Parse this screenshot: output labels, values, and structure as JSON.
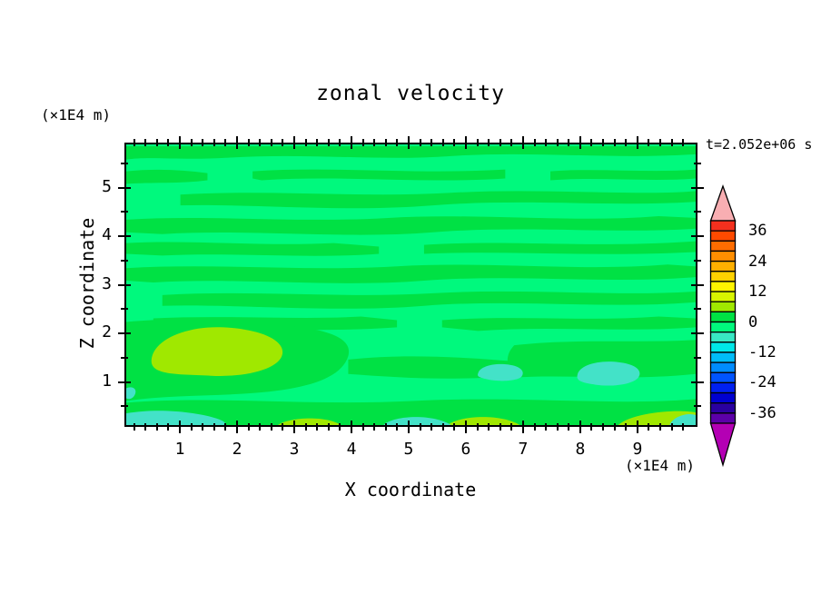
{
  "title": "zonal velocity",
  "time_label": "t=2.052e+06 s",
  "axes": {
    "x": {
      "label": "X coordinate",
      "unit_label": "(×1E4 m)",
      "major_ticks": [
        1,
        2,
        3,
        4,
        5,
        6,
        7,
        8,
        9
      ],
      "minor_step": 0.2,
      "range": [
        0.03,
        10.05
      ]
    },
    "z": {
      "label": "Z coordinate",
      "unit_label": "(×1E4 m)",
      "major_ticks": [
        1,
        2,
        3,
        4,
        5
      ],
      "minor_step": 0.5,
      "range": [
        0.075,
        5.93
      ]
    }
  },
  "colorbar": {
    "labels": [
      36,
      24,
      12,
      0,
      -12,
      -24,
      -36
    ],
    "level_min": -40,
    "level_max": 40,
    "level_step": 4,
    "segment_colors_top_to_bottom": [
      "#F3301E",
      "#FF4A00",
      "#FF6C00",
      "#FF8E00",
      "#FFB000",
      "#FFD200",
      "#FFF400",
      "#D8F400",
      "#A0E800",
      "#00E144",
      "#00F97D",
      "#38E8C4",
      "#00E8E8",
      "#00BCF8",
      "#008CFF",
      "#0054FF",
      "#0020F0",
      "#0000D0",
      "#2A00A0",
      "#5C00A8"
    ],
    "over_color": "#F8AEB2",
    "under_color": "#B400B4"
  },
  "field_colors": {
    "background_neg": "#00F97D",
    "pos_band": "#00E144",
    "chartreuse": "#A0E800",
    "cyan": "#43E2C8"
  },
  "chart_data": {
    "type": "heatmap",
    "title": "zonal velocity",
    "xlabel": "X coordinate (×1E4 m)",
    "ylabel": "Z coordinate (×1E4 m)",
    "time_annotation": "t=2.052e+06 s",
    "xlim": [
      0,
      10.05
    ],
    "ylim": [
      0,
      5.93
    ],
    "contour_levels": {
      "min": -40,
      "max": 40,
      "step": 4
    },
    "colorbar_tick_labels": [
      36,
      24,
      12,
      0,
      -12,
      -24,
      -36
    ],
    "legend_position": "right",
    "grid": false,
    "field_summary": {
      "dominant_values": "between -4 and 4: alternating wavy horizontal bands of 0..4 (green) and -4..0 (spring green) across the whole domain",
      "positive_patches_4_to_8": [
        {
          "x": 1.6,
          "z": 1.8,
          "extent_x": [
            1.0,
            2.8
          ],
          "extent_z": [
            1.3,
            2.2
          ]
        },
        {
          "x": 3.2,
          "z": 0.1
        },
        {
          "x": 6.3,
          "z": 0.1
        },
        {
          "x": 9.3,
          "z": 0.15
        }
      ],
      "negative_patches_minus8_to_minus4": [
        {
          "x": 1.2,
          "z": 0.15
        },
        {
          "x": 5.1,
          "z": 0.15
        },
        {
          "x": 6.6,
          "z": 1.1
        },
        {
          "x": 8.5,
          "z": 1.2
        },
        {
          "x": 9.9,
          "z": 0.15
        }
      ]
    }
  }
}
